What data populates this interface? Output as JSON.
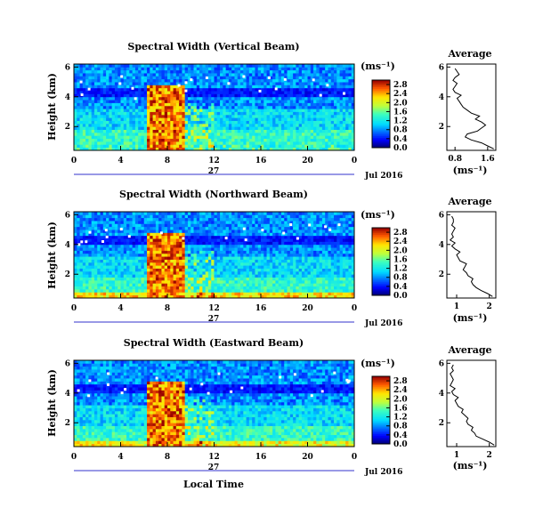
{
  "chart_data": [
    {
      "type": "heatmap",
      "title": "Spectral Width (Vertical Beam)",
      "ylabel": "Height (km)",
      "x_ticks": [
        "0",
        "4",
        "8",
        "12",
        "16",
        "20",
        "0"
      ],
      "xlim": [
        0,
        24
      ],
      "y_ticks": [
        "2",
        "4",
        "6"
      ],
      "ylim": [
        0.4,
        6.2
      ],
      "day_label": "27",
      "date_label": "Jul 2016",
      "colorbar": {
        "unit": "(ms⁻¹)",
        "ticks": [
          "0.0",
          "0.4",
          "0.8",
          "1.2",
          "1.6",
          "2.0",
          "2.4",
          "2.8"
        ],
        "range": [
          0,
          3.0
        ]
      },
      "profile": {
        "title": "Average",
        "xlabel": "(ms⁻¹)",
        "x_ticks": [
          "0.8",
          "1.6"
        ],
        "x_tick_values": [
          0.8,
          1.6
        ],
        "xlim": [
          0.6,
          1.8
        ],
        "y_ticks": [
          "2",
          "4",
          "6"
        ],
        "height": [
          0.5,
          0.7,
          0.9,
          1.1,
          1.3,
          1.5,
          1.7,
          1.9,
          2.1,
          2.3,
          2.5,
          2.7,
          2.9,
          3.1,
          3.3,
          3.5,
          3.7,
          3.9,
          4.1,
          4.3,
          4.5,
          4.7,
          4.9,
          5.1,
          5.3,
          5.5,
          5.7,
          5.9
        ],
        "values": [
          1.75,
          1.6,
          1.45,
          1.2,
          1.05,
          1.1,
          1.35,
          1.45,
          1.55,
          1.45,
          1.3,
          1.4,
          1.2,
          1.1,
          1.0,
          0.95,
          0.9,
          0.85,
          0.95,
          0.8,
          0.75,
          0.8,
          0.85,
          0.75,
          0.8,
          0.9,
          0.85,
          0.8
        ]
      }
    },
    {
      "type": "heatmap",
      "title": "Spectral Width (Northward Beam)",
      "ylabel": "Height (km)",
      "x_ticks": [
        "0",
        "4",
        "8",
        "12",
        "16",
        "20",
        "0"
      ],
      "xlim": [
        0,
        24
      ],
      "y_ticks": [
        "2",
        "4",
        "6"
      ],
      "ylim": [
        0.4,
        6.2
      ],
      "day_label": "27",
      "date_label": "Jul 2016",
      "colorbar": {
        "unit": "(ms⁻¹)",
        "ticks": [
          "0.0",
          "0.4",
          "0.8",
          "1.2",
          "1.6",
          "2.0",
          "2.4",
          "2.8"
        ],
        "range": [
          0,
          3.0
        ]
      },
      "profile": {
        "title": "Average",
        "xlabel": "(ms⁻¹)",
        "x_ticks": [
          "1",
          "2"
        ],
        "x_tick_values": [
          1,
          2
        ],
        "xlim": [
          0.7,
          2.2
        ],
        "y_ticks": [
          "2",
          "4",
          "6"
        ],
        "height": [
          0.5,
          0.7,
          0.9,
          1.1,
          1.3,
          1.5,
          1.7,
          1.9,
          2.1,
          2.3,
          2.5,
          2.7,
          2.9,
          3.1,
          3.3,
          3.5,
          3.7,
          3.9,
          4.1,
          4.3,
          4.5,
          4.7,
          4.9,
          5.1,
          5.3,
          5.5,
          5.7,
          5.9
        ],
        "values": [
          2.1,
          1.95,
          1.75,
          1.6,
          1.5,
          1.45,
          1.5,
          1.35,
          1.3,
          1.2,
          1.25,
          1.3,
          1.1,
          1.05,
          1.0,
          1.1,
          0.95,
          0.85,
          0.95,
          0.8,
          0.9,
          0.85,
          0.9,
          0.95,
          0.85,
          0.9,
          0.9,
          0.85
        ]
      }
    },
    {
      "type": "heatmap",
      "title": "Spectral Width (Eastward Beam)",
      "ylabel": "Height (km)",
      "xlabel": "Local Time",
      "x_ticks": [
        "0",
        "4",
        "8",
        "12",
        "16",
        "20",
        "0"
      ],
      "xlim": [
        0,
        24
      ],
      "y_ticks": [
        "2",
        "4",
        "6"
      ],
      "ylim": [
        0.4,
        6.2
      ],
      "day_label": "27",
      "date_label": "Jul 2016",
      "colorbar": {
        "unit": "(ms⁻¹)",
        "ticks": [
          "0.0",
          "0.4",
          "0.8",
          "1.2",
          "1.6",
          "2.0",
          "2.4",
          "2.8"
        ],
        "range": [
          0,
          3.0
        ]
      },
      "profile": {
        "title": "Average",
        "xlabel": "(ms⁻¹)",
        "x_ticks": [
          "1",
          "2"
        ],
        "x_tick_values": [
          1,
          2
        ],
        "xlim": [
          0.7,
          2.2
        ],
        "y_ticks": [
          "2",
          "4",
          "6"
        ],
        "height": [
          0.5,
          0.7,
          0.9,
          1.1,
          1.3,
          1.5,
          1.7,
          1.9,
          2.1,
          2.3,
          2.5,
          2.7,
          2.9,
          3.1,
          3.3,
          3.5,
          3.7,
          3.9,
          4.1,
          4.3,
          4.5,
          4.7,
          4.9,
          5.1,
          5.3,
          5.5,
          5.7,
          5.9
        ],
        "values": [
          2.15,
          2.0,
          1.8,
          1.6,
          1.55,
          1.45,
          1.5,
          1.35,
          1.3,
          1.35,
          1.25,
          1.15,
          1.2,
          1.05,
          1.0,
          0.95,
          1.05,
          0.9,
          0.85,
          0.95,
          0.8,
          0.85,
          0.9,
          0.85,
          0.8,
          0.9,
          0.85,
          0.9
        ]
      }
    }
  ]
}
